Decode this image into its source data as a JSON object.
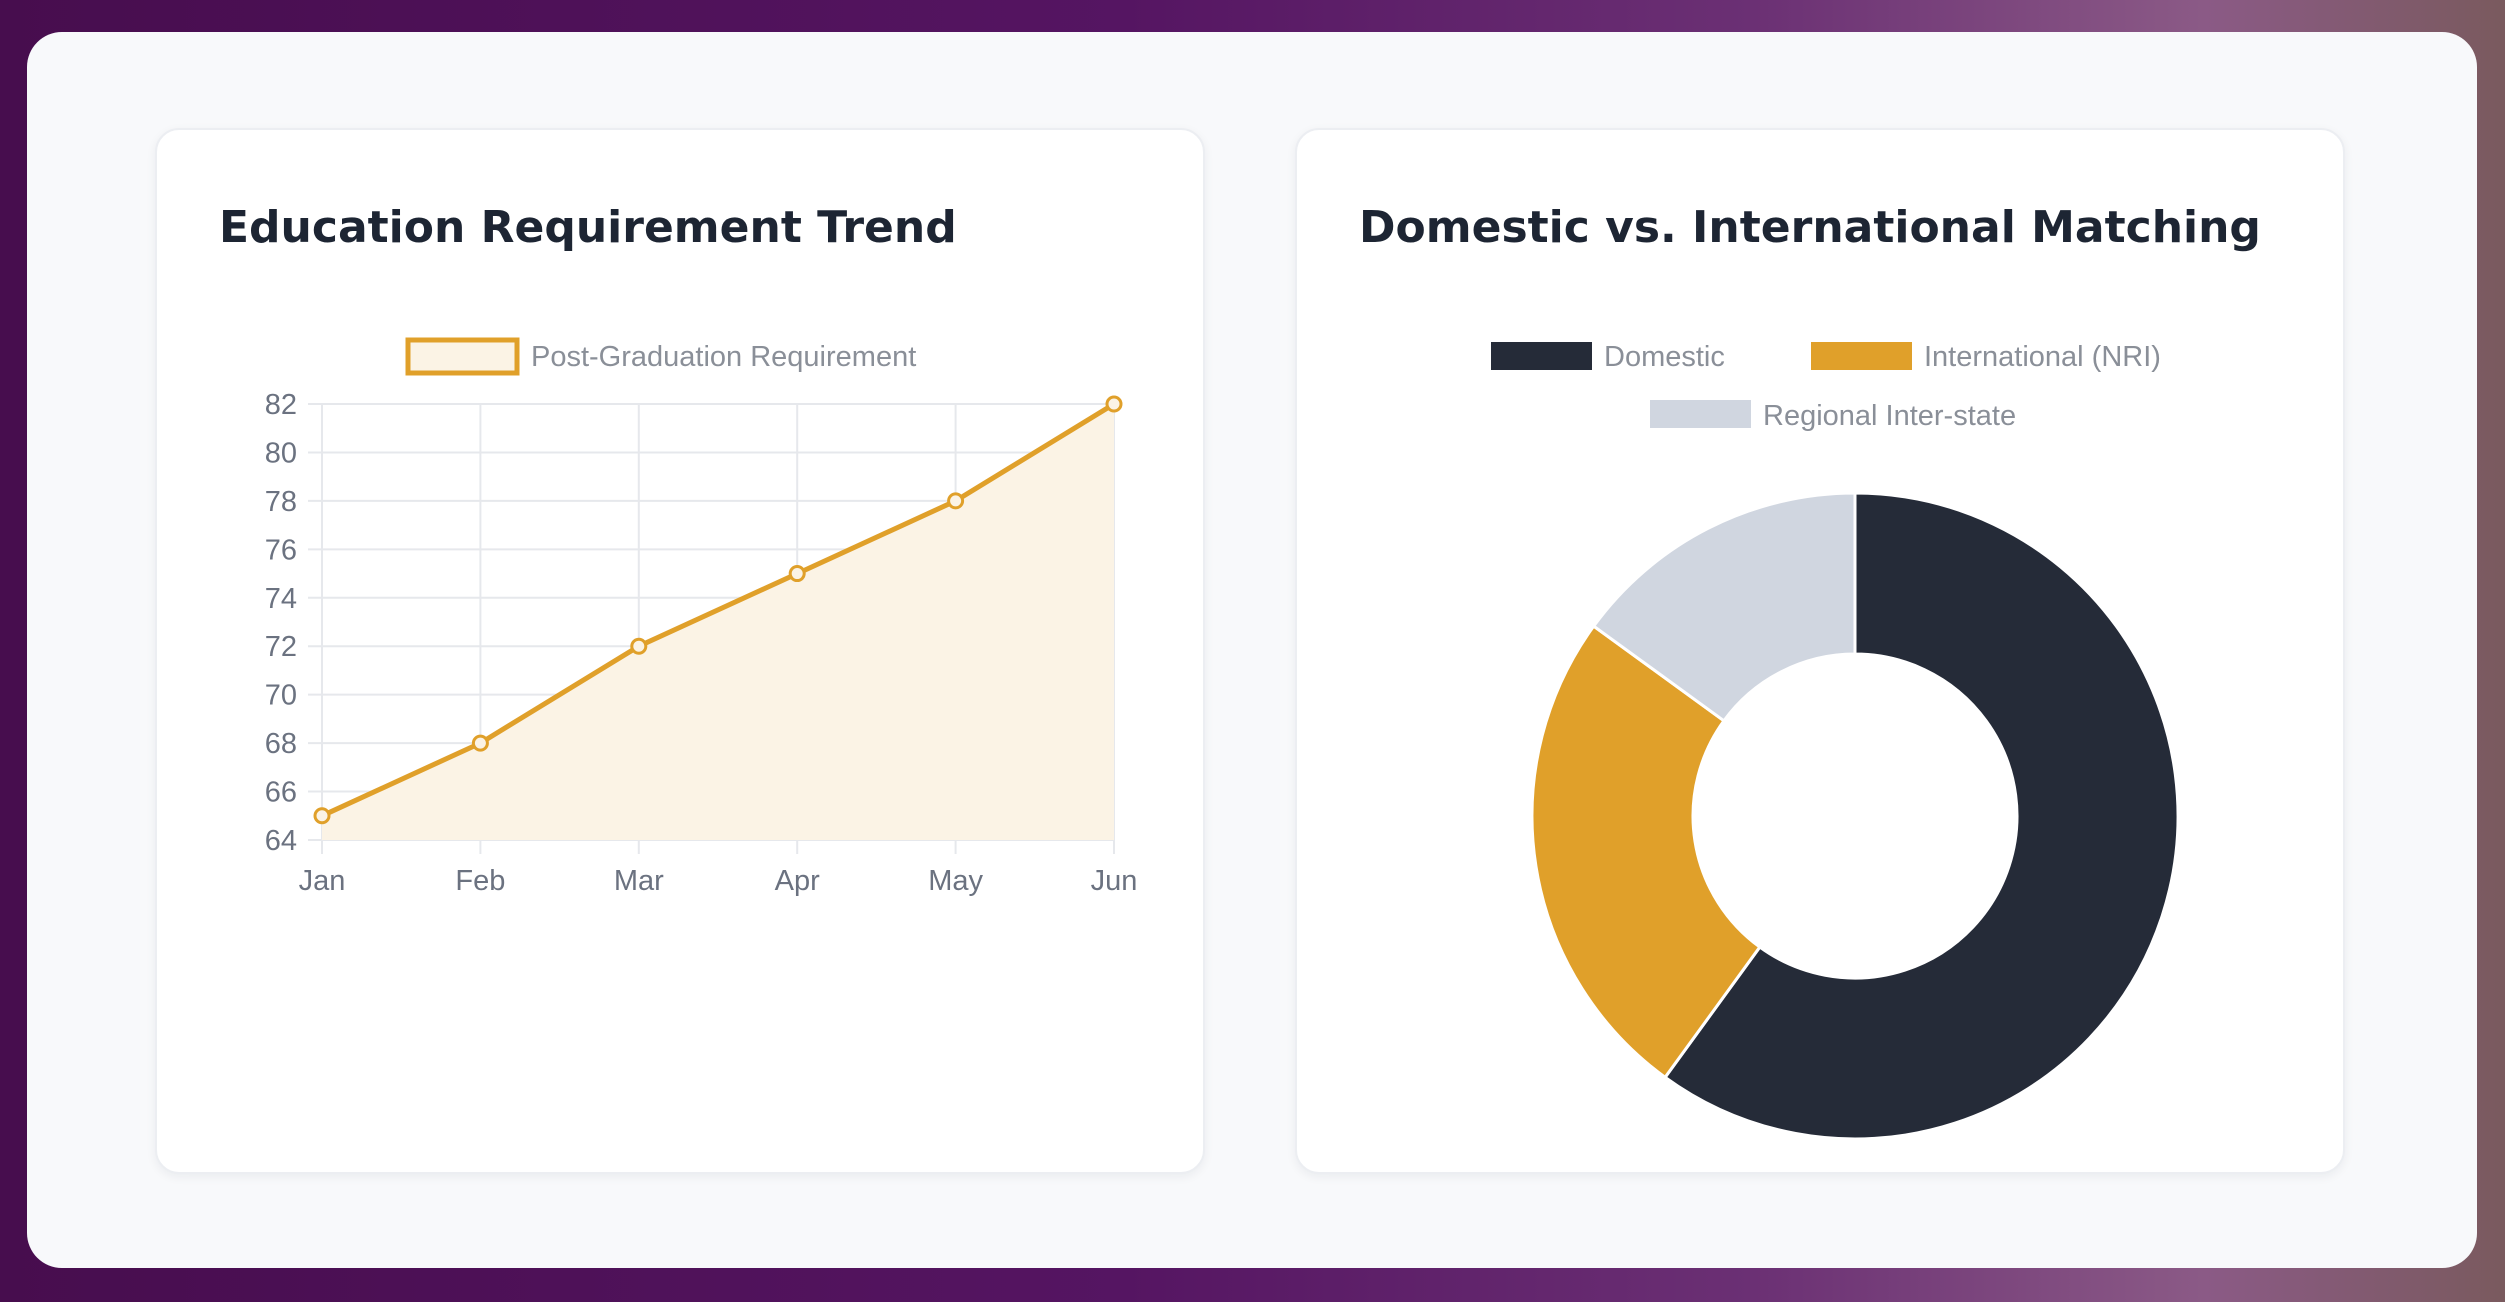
{
  "chart_data": [
    {
      "type": "line",
      "title": "Education Requirement Trend",
      "x": [
        "Jan",
        "Feb",
        "Mar",
        "Apr",
        "May",
        "Jun"
      ],
      "series": [
        {
          "name": "Post-Graduation Requirement",
          "values": [
            65,
            68,
            72,
            75,
            78,
            82
          ],
          "color": "#e0a02a",
          "fill": "#fbf3e5"
        }
      ],
      "ylim": [
        64,
        82
      ],
      "yticks": [
        64,
        66,
        68,
        70,
        72,
        74,
        76,
        78,
        80,
        82
      ],
      "xlabel": "",
      "ylabel": "",
      "grid": true,
      "legend": "top"
    },
    {
      "type": "pie",
      "variant": "doughnut",
      "title": "Domestic vs. International Matching",
      "categories": [
        "Domestic",
        "International (NRI)",
        "Regional Inter-state"
      ],
      "values": [
        60,
        25,
        15
      ],
      "colors": [
        "#252b38",
        "#e0a02a",
        "#d0d6e0"
      ],
      "legend": "top"
    }
  ]
}
